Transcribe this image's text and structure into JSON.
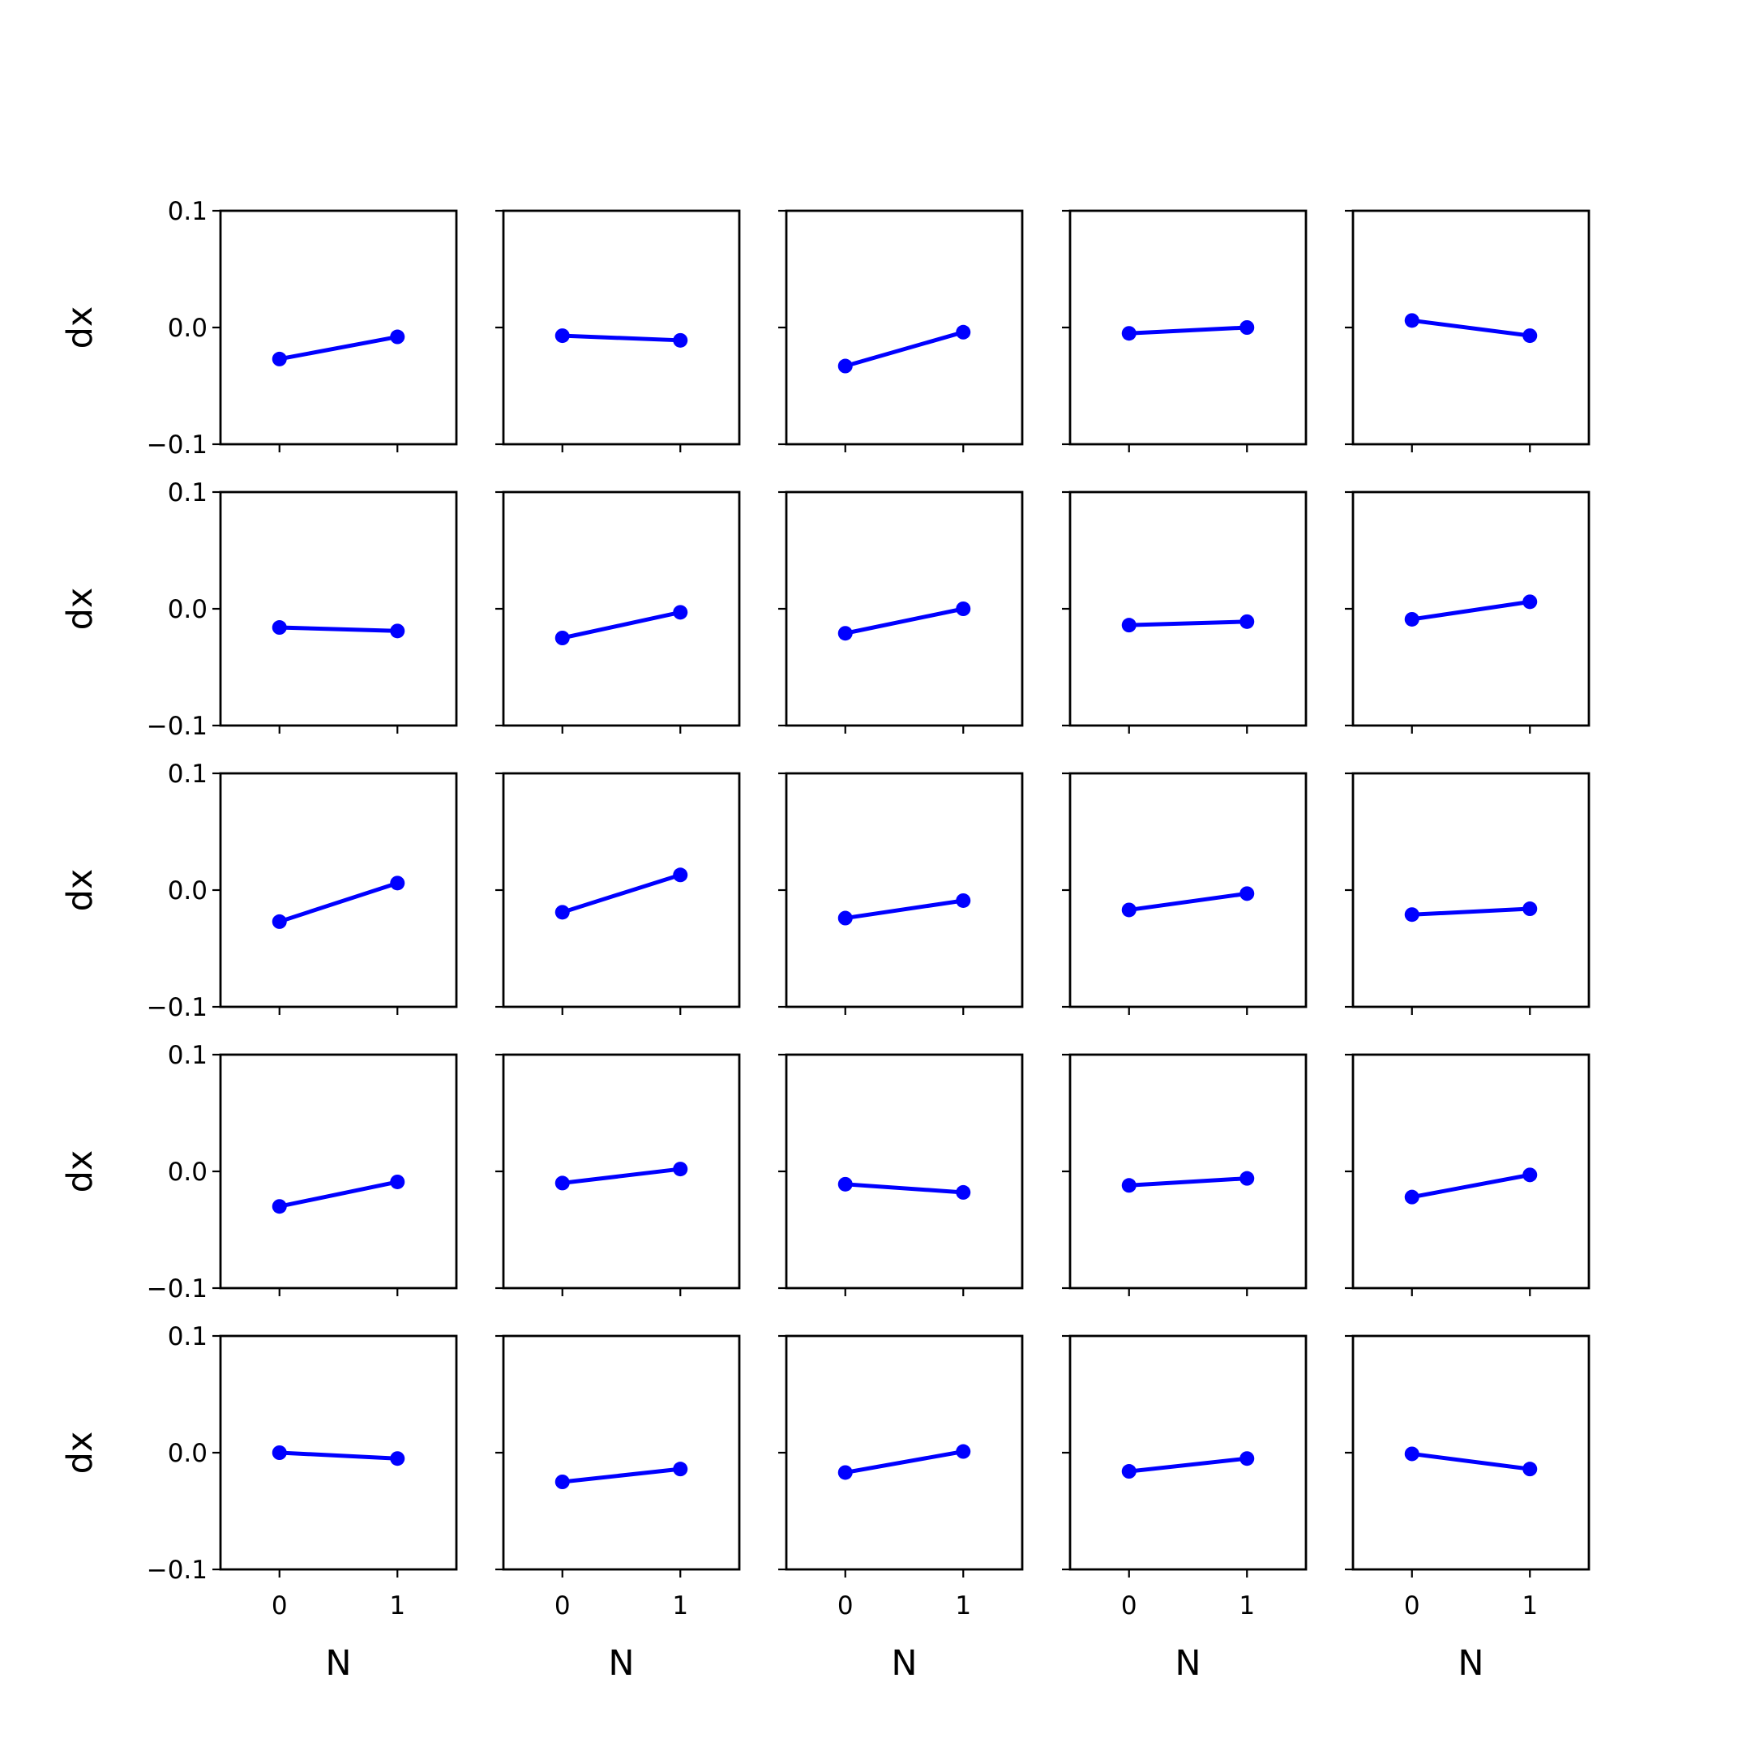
{
  "series_color": "#0000ff",
  "chart_data": [
    {
      "type": "line",
      "x": [
        0,
        1
      ],
      "y": [
        -0.027,
        -0.008
      ],
      "xlim": [
        -0.5,
        1.5
      ],
      "ylim": [
        -0.1,
        0.1
      ],
      "xticks": [
        "0",
        "1"
      ],
      "yticks": [
        "0.1",
        "0.0",
        "−0.1"
      ],
      "xlabel": "",
      "ylabel": "dx",
      "grid": false
    },
    {
      "type": "line",
      "x": [
        0,
        1
      ],
      "y": [
        -0.007,
        -0.011
      ],
      "xlim": [
        -0.5,
        1.5
      ],
      "ylim": [
        -0.1,
        0.1
      ],
      "xticks": [
        "0",
        "1"
      ],
      "yticks": [],
      "xlabel": "",
      "ylabel": "",
      "grid": false
    },
    {
      "type": "line",
      "x": [
        0,
        1
      ],
      "y": [
        -0.033,
        -0.004
      ],
      "xlim": [
        -0.5,
        1.5
      ],
      "ylim": [
        -0.1,
        0.1
      ],
      "xticks": [
        "0",
        "1"
      ],
      "yticks": [],
      "xlabel": "",
      "ylabel": "",
      "grid": false
    },
    {
      "type": "line",
      "x": [
        0,
        1
      ],
      "y": [
        -0.005,
        0.0
      ],
      "xlim": [
        -0.5,
        1.5
      ],
      "ylim": [
        -0.1,
        0.1
      ],
      "xticks": [
        "0",
        "1"
      ],
      "yticks": [],
      "xlabel": "",
      "ylabel": "",
      "grid": false
    },
    {
      "type": "line",
      "x": [
        0,
        1
      ],
      "y": [
        0.006,
        -0.007
      ],
      "xlim": [
        -0.5,
        1.5
      ],
      "ylim": [
        -0.1,
        0.1
      ],
      "xticks": [
        "0",
        "1"
      ],
      "yticks": [],
      "xlabel": "",
      "ylabel": "",
      "grid": false
    },
    {
      "type": "line",
      "x": [
        0,
        1
      ],
      "y": [
        -0.016,
        -0.019
      ],
      "xlim": [
        -0.5,
        1.5
      ],
      "ylim": [
        -0.1,
        0.1
      ],
      "xticks": [
        "0",
        "1"
      ],
      "yticks": [
        "0.1",
        "0.0",
        "−0.1"
      ],
      "xlabel": "",
      "ylabel": "dx",
      "grid": false
    },
    {
      "type": "line",
      "x": [
        0,
        1
      ],
      "y": [
        -0.025,
        -0.003
      ],
      "xlim": [
        -0.5,
        1.5
      ],
      "ylim": [
        -0.1,
        0.1
      ],
      "xticks": [
        "0",
        "1"
      ],
      "yticks": [],
      "xlabel": "",
      "ylabel": "",
      "grid": false
    },
    {
      "type": "line",
      "x": [
        0,
        1
      ],
      "y": [
        -0.021,
        0.0
      ],
      "xlim": [
        -0.5,
        1.5
      ],
      "ylim": [
        -0.1,
        0.1
      ],
      "xticks": [
        "0",
        "1"
      ],
      "yticks": [],
      "xlabel": "",
      "ylabel": "",
      "grid": false
    },
    {
      "type": "line",
      "x": [
        0,
        1
      ],
      "y": [
        -0.014,
        -0.011
      ],
      "xlim": [
        -0.5,
        1.5
      ],
      "ylim": [
        -0.1,
        0.1
      ],
      "xticks": [
        "0",
        "1"
      ],
      "yticks": [],
      "xlabel": "",
      "ylabel": "",
      "grid": false
    },
    {
      "type": "line",
      "x": [
        0,
        1
      ],
      "y": [
        -0.009,
        0.006
      ],
      "xlim": [
        -0.5,
        1.5
      ],
      "ylim": [
        -0.1,
        0.1
      ],
      "xticks": [
        "0",
        "1"
      ],
      "yticks": [],
      "xlabel": "",
      "ylabel": "",
      "grid": false
    },
    {
      "type": "line",
      "x": [
        0,
        1
      ],
      "y": [
        -0.027,
        0.006
      ],
      "xlim": [
        -0.5,
        1.5
      ],
      "ylim": [
        -0.1,
        0.1
      ],
      "xticks": [
        "0",
        "1"
      ],
      "yticks": [
        "0.1",
        "0.0",
        "−0.1"
      ],
      "xlabel": "",
      "ylabel": "dx",
      "grid": false
    },
    {
      "type": "line",
      "x": [
        0,
        1
      ],
      "y": [
        -0.019,
        0.013
      ],
      "xlim": [
        -0.5,
        1.5
      ],
      "ylim": [
        -0.1,
        0.1
      ],
      "xticks": [
        "0",
        "1"
      ],
      "yticks": [],
      "xlabel": "",
      "ylabel": "",
      "grid": false
    },
    {
      "type": "line",
      "x": [
        0,
        1
      ],
      "y": [
        -0.024,
        -0.009
      ],
      "xlim": [
        -0.5,
        1.5
      ],
      "ylim": [
        -0.1,
        0.1
      ],
      "xticks": [
        "0",
        "1"
      ],
      "yticks": [],
      "xlabel": "",
      "ylabel": "",
      "grid": false
    },
    {
      "type": "line",
      "x": [
        0,
        1
      ],
      "y": [
        -0.017,
        -0.003
      ],
      "xlim": [
        -0.5,
        1.5
      ],
      "ylim": [
        -0.1,
        0.1
      ],
      "xticks": [
        "0",
        "1"
      ],
      "yticks": [],
      "xlabel": "",
      "ylabel": "",
      "grid": false
    },
    {
      "type": "line",
      "x": [
        0,
        1
      ],
      "y": [
        -0.021,
        -0.016
      ],
      "xlim": [
        -0.5,
        1.5
      ],
      "ylim": [
        -0.1,
        0.1
      ],
      "xticks": [
        "0",
        "1"
      ],
      "yticks": [],
      "xlabel": "",
      "ylabel": "",
      "grid": false
    },
    {
      "type": "line",
      "x": [
        0,
        1
      ],
      "y": [
        -0.03,
        -0.009
      ],
      "xlim": [
        -0.5,
        1.5
      ],
      "ylim": [
        -0.1,
        0.1
      ],
      "xticks": [
        "0",
        "1"
      ],
      "yticks": [
        "0.1",
        "0.0",
        "−0.1"
      ],
      "xlabel": "",
      "ylabel": "dx",
      "grid": false
    },
    {
      "type": "line",
      "x": [
        0,
        1
      ],
      "y": [
        -0.01,
        0.002
      ],
      "xlim": [
        -0.5,
        1.5
      ],
      "ylim": [
        -0.1,
        0.1
      ],
      "xticks": [
        "0",
        "1"
      ],
      "yticks": [],
      "xlabel": "",
      "ylabel": "",
      "grid": false
    },
    {
      "type": "line",
      "x": [
        0,
        1
      ],
      "y": [
        -0.011,
        -0.018
      ],
      "xlim": [
        -0.5,
        1.5
      ],
      "ylim": [
        -0.1,
        0.1
      ],
      "xticks": [
        "0",
        "1"
      ],
      "yticks": [],
      "xlabel": "",
      "ylabel": "",
      "grid": false
    },
    {
      "type": "line",
      "x": [
        0,
        1
      ],
      "y": [
        -0.012,
        -0.006
      ],
      "xlim": [
        -0.5,
        1.5
      ],
      "ylim": [
        -0.1,
        0.1
      ],
      "xticks": [
        "0",
        "1"
      ],
      "yticks": [],
      "xlabel": "",
      "ylabel": "",
      "grid": false
    },
    {
      "type": "line",
      "x": [
        0,
        1
      ],
      "y": [
        -0.022,
        -0.003
      ],
      "xlim": [
        -0.5,
        1.5
      ],
      "ylim": [
        -0.1,
        0.1
      ],
      "xticks": [
        "0",
        "1"
      ],
      "yticks": [],
      "xlabel": "",
      "ylabel": "",
      "grid": false
    },
    {
      "type": "line",
      "x": [
        0,
        1
      ],
      "y": [
        0.0,
        -0.005
      ],
      "xlim": [
        -0.5,
        1.5
      ],
      "ylim": [
        -0.1,
        0.1
      ],
      "xticks": [
        "0",
        "1"
      ],
      "yticks": [
        "0.1",
        "0.0",
        "−0.1"
      ],
      "xlabel": "N",
      "ylabel": "dx",
      "grid": false
    },
    {
      "type": "line",
      "x": [
        0,
        1
      ],
      "y": [
        -0.025,
        -0.014
      ],
      "xlim": [
        -0.5,
        1.5
      ],
      "ylim": [
        -0.1,
        0.1
      ],
      "xticks": [
        "0",
        "1"
      ],
      "yticks": [],
      "xlabel": "N",
      "ylabel": "",
      "grid": false
    },
    {
      "type": "line",
      "x": [
        0,
        1
      ],
      "y": [
        -0.017,
        0.001
      ],
      "xlim": [
        -0.5,
        1.5
      ],
      "ylim": [
        -0.1,
        0.1
      ],
      "xticks": [
        "0",
        "1"
      ],
      "yticks": [],
      "xlabel": "N",
      "ylabel": "",
      "grid": false
    },
    {
      "type": "line",
      "x": [
        0,
        1
      ],
      "y": [
        -0.016,
        -0.005
      ],
      "xlim": [
        -0.5,
        1.5
      ],
      "ylim": [
        -0.1,
        0.1
      ],
      "xticks": [
        "0",
        "1"
      ],
      "yticks": [],
      "xlabel": "N",
      "ylabel": "",
      "grid": false
    },
    {
      "type": "line",
      "x": [
        0,
        1
      ],
      "y": [
        -0.001,
        -0.014
      ],
      "xlim": [
        -0.5,
        1.5
      ],
      "ylim": [
        -0.1,
        0.1
      ],
      "xticks": [
        "0",
        "1"
      ],
      "yticks": [],
      "xlabel": "N",
      "ylabel": "",
      "grid": false
    }
  ]
}
